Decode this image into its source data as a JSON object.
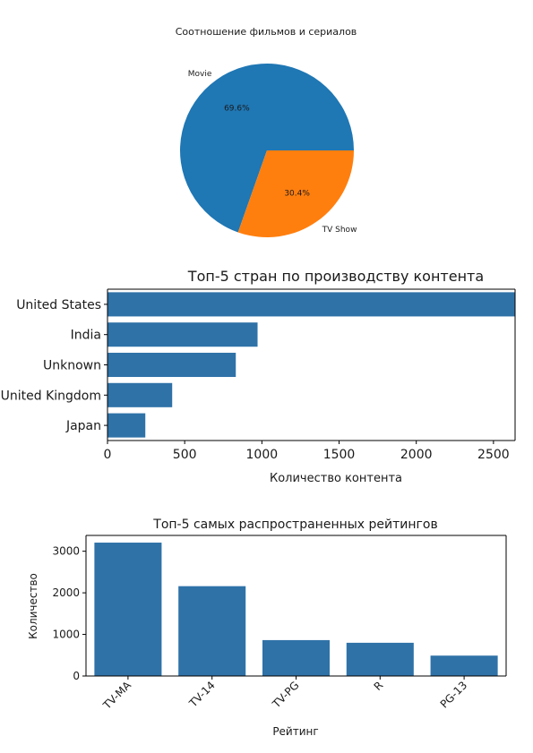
{
  "chart_data": [
    {
      "type": "pie",
      "title": "Соотношение фильмов и сериалов",
      "labels": [
        "Movie",
        "TV Show"
      ],
      "values": [
        69.6,
        30.4
      ],
      "value_labels": [
        "69.6%",
        "30.4%"
      ],
      "colors": [
        "#1f77b4",
        "#ff7f0e"
      ]
    },
    {
      "type": "bar",
      "orientation": "horizontal",
      "title": "Топ-5 стран по производству контента",
      "xlabel": "Количество контента",
      "ylabel": "",
      "categories": [
        "United States",
        "India",
        "Unknown",
        "United Kingdom",
        "Japan"
      ],
      "values": [
        2818,
        972,
        831,
        419,
        245
      ],
      "xlim": [
        0,
        2640
      ],
      "xticks": [
        0,
        500,
        1000,
        1500,
        2000,
        2500
      ],
      "color": "#2f72a8"
    },
    {
      "type": "bar",
      "title": "Топ-5 самых распространенных рейтингов",
      "xlabel": "Рейтинг",
      "ylabel": "Количество",
      "categories": [
        "TV-MA",
        "TV-14",
        "TV-PG",
        "R",
        "PG-13"
      ],
      "values": [
        3207,
        2160,
        863,
        799,
        490
      ],
      "ylim": [
        0,
        3380
      ],
      "yticks": [
        0,
        1000,
        2000,
        3000
      ],
      "color": "#2f72a8"
    }
  ]
}
